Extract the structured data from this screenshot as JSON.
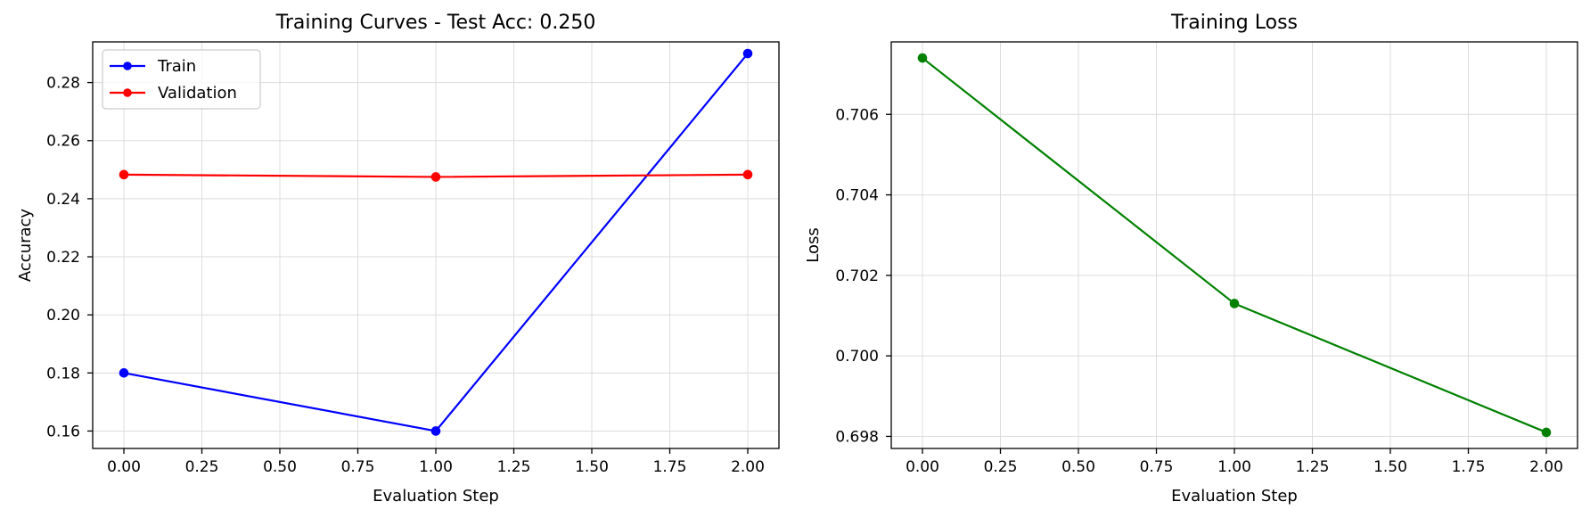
{
  "chart_data": [
    {
      "type": "line",
      "title": "Training Curves - Test Acc: 0.250",
      "xlabel": "Evaluation Step",
      "ylabel": "Accuracy",
      "x": [
        0,
        1,
        2
      ],
      "xlim": [
        -0.1,
        2.1
      ],
      "ylim": [
        0.154,
        0.294
      ],
      "xticks": [
        0,
        0.25,
        0.5,
        0.75,
        1.0,
        1.25,
        1.5,
        1.75,
        2.0
      ],
      "xtick_labels": [
        "0.00",
        "0.25",
        "0.50",
        "0.75",
        "1.00",
        "1.25",
        "1.50",
        "1.75",
        "2.00"
      ],
      "yticks": [
        0.16,
        0.18,
        0.2,
        0.22,
        0.24,
        0.26,
        0.28
      ],
      "ytick_labels": [
        "0.16",
        "0.18",
        "0.20",
        "0.22",
        "0.24",
        "0.26",
        "0.28"
      ],
      "grid": true,
      "legend": "top-left",
      "series": [
        {
          "name": "Train",
          "color": "#0000ff",
          "values": [
            0.18,
            0.16,
            0.29
          ]
        },
        {
          "name": "Validation",
          "color": "#ff0000",
          "values": [
            0.2483,
            0.2475,
            0.2483
          ]
        }
      ]
    },
    {
      "type": "line",
      "title": "Training Loss",
      "xlabel": "Evaluation Step",
      "ylabel": "Loss",
      "x": [
        0,
        1,
        2
      ],
      "xlim": [
        -0.1,
        2.1
      ],
      "ylim": [
        0.6977,
        0.7078
      ],
      "xticks": [
        0,
        0.25,
        0.5,
        0.75,
        1.0,
        1.25,
        1.5,
        1.75,
        2.0
      ],
      "xtick_labels": [
        "0.00",
        "0.25",
        "0.50",
        "0.75",
        "1.00",
        "1.25",
        "1.50",
        "1.75",
        "2.00"
      ],
      "yticks": [
        0.698,
        0.7,
        0.702,
        0.704,
        0.706
      ],
      "ytick_labels": [
        "0.698",
        "0.700",
        "0.702",
        "0.704",
        "0.706"
      ],
      "grid": true,
      "legend": "none",
      "series": [
        {
          "color": "#008000",
          "values": [
            0.7074,
            0.7013,
            0.6981
          ]
        }
      ]
    }
  ]
}
